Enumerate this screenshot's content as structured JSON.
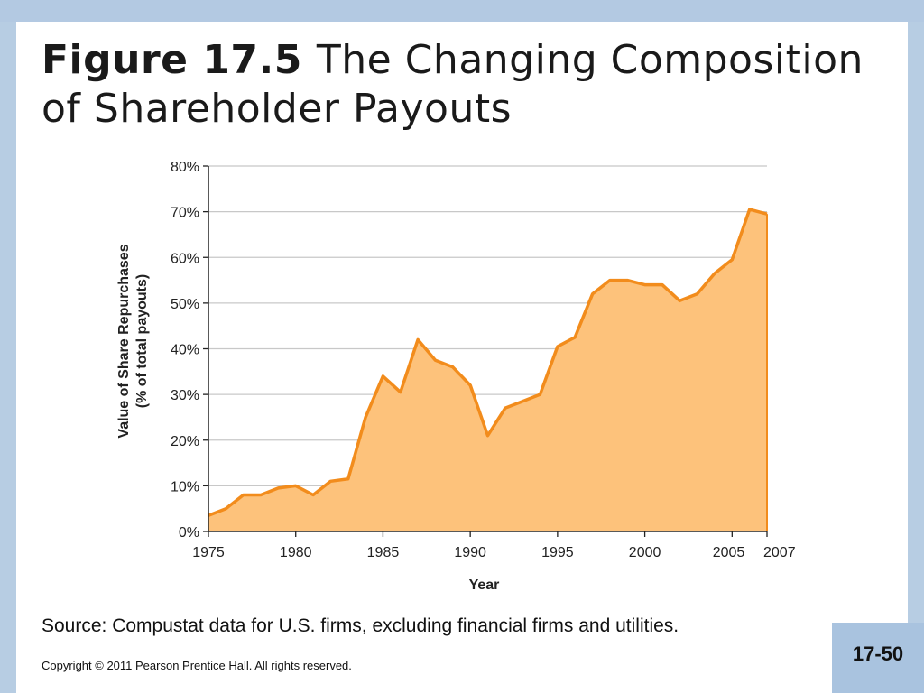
{
  "slide": {
    "title_bold": "Figure 17.5",
    "title_rest": "The Changing Composition of Shareholder Payouts",
    "source": "Source: Compustat data for U.S. firms, excluding financial firms and utilities.",
    "copyright": "Copyright © 2011 Pearson Prentice Hall. All rights reserved.",
    "page_number": "17-50"
  },
  "colors": {
    "background_band": "#b3c9e2",
    "area_fill": "#fdc27b",
    "line": "#f28c1c",
    "grid": "#c8c8c8",
    "page_box": "#a9c3df"
  },
  "chart_data": {
    "type": "area",
    "xlabel": "Year",
    "ylabel_line1": "Value of Share Repurchases",
    "ylabel_line2": "(% of total payouts)",
    "xlim": [
      1975,
      2007
    ],
    "ylim": [
      0,
      80
    ],
    "x_ticks": [
      1975,
      1980,
      1985,
      1990,
      1995,
      2000,
      2005,
      2007
    ],
    "x_tick_labels": [
      "1975",
      "1980",
      "1985",
      "1990",
      "1995",
      "2000",
      "2005",
      "2007"
    ],
    "y_ticks": [
      0,
      10,
      20,
      30,
      40,
      50,
      60,
      70,
      80
    ],
    "y_tick_labels": [
      "0%",
      "10%",
      "20%",
      "30%",
      "40%",
      "50%",
      "60%",
      "70%",
      "80%"
    ],
    "grid": "horizontal",
    "series": [
      {
        "x": [
          1975,
          1976,
          1977,
          1978,
          1979,
          1980,
          1981,
          1982,
          1983,
          1984,
          1985,
          1986,
          1987,
          1988,
          1989,
          1990,
          1991,
          1992,
          1993,
          1994,
          1995,
          1996,
          1997,
          1998,
          1999,
          2000,
          2001,
          2002,
          2003,
          2004,
          2005,
          2006,
          2007
        ],
        "values": [
          3.5,
          5,
          8,
          8,
          9.5,
          10,
          8,
          11,
          11.5,
          25,
          34,
          30.5,
          42,
          37.5,
          36,
          32,
          21,
          27,
          28.5,
          30,
          40.5,
          42.5,
          52,
          55,
          55,
          54,
          54,
          50.5,
          52,
          56.5,
          59.5,
          70.5,
          69.5
        ]
      }
    ]
  }
}
